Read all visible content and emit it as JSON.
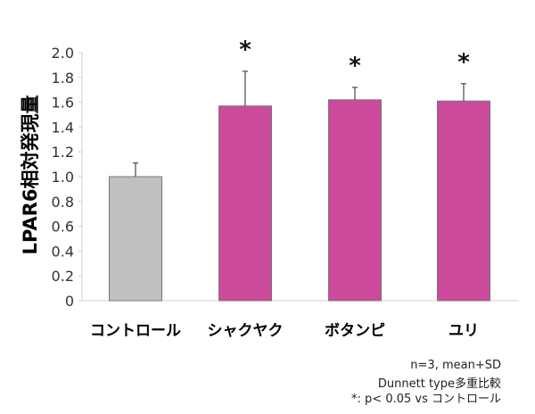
{
  "chart_data": {
    "type": "bar",
    "title": "",
    "xlabel": "",
    "ylabel": "LPAR6相対発現量",
    "ylim": [
      0,
      2.0
    ],
    "yticks": [
      "0",
      "0.2",
      "0.4",
      "0.6",
      "0.8",
      "1.0",
      "1.2",
      "1.4",
      "1.6",
      "1.8",
      "2.0"
    ],
    "categories": [
      "コントロール",
      "シャクヤク",
      "ボタンピ",
      "ユリ"
    ],
    "values": [
      1.0,
      1.57,
      1.62,
      1.61
    ],
    "error_sd": [
      0.11,
      0.28,
      0.1,
      0.14
    ],
    "significance": [
      "",
      "*",
      "*",
      "*"
    ],
    "colors": [
      "#c0c0c0",
      "#cc4a9c",
      "#cc4a9c",
      "#cc4a9c"
    ],
    "grid": false,
    "legend": null
  },
  "notes": {
    "line1": "n=3, mean+SD",
    "line2": "Dunnett type多重比較",
    "line3": "*: p< 0.05 vs コントロール"
  }
}
